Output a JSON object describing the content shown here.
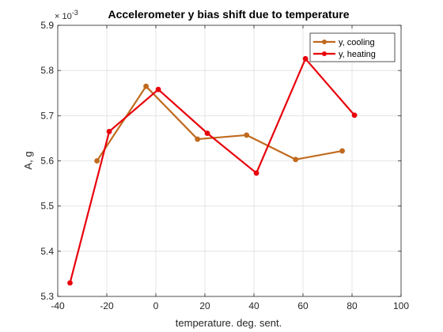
{
  "chart_data": {
    "type": "line",
    "title": "Accelerometer y bias shift due to temperature",
    "xlabel": "temperature. deg. sent.",
    "ylabel": "A, g",
    "y_exponent_multiplier": "× 10",
    "y_exponent_power": "-3",
    "xlim": [
      -40,
      100
    ],
    "ylim": [
      5.3,
      5.9
    ],
    "xticks": [
      -40,
      -20,
      0,
      20,
      40,
      60,
      80,
      100
    ],
    "xtick_labels": [
      "-40",
      "-20",
      "0",
      "20",
      "40",
      "60",
      "80",
      "100"
    ],
    "yticks": [
      5.3,
      5.4,
      5.5,
      5.6,
      5.7,
      5.8,
      5.9
    ],
    "ytick_labels": [
      "5.3",
      "5.4",
      "5.5",
      "5.6",
      "5.7",
      "5.8",
      "5.9"
    ],
    "grid": true,
    "legend_position": "top-right",
    "series": [
      {
        "name": "y, cooling",
        "color": "#C06A1E",
        "x": [
          -24,
          -4,
          17,
          37,
          57,
          76
        ],
        "y": [
          5.6,
          5.765,
          5.648,
          5.657,
          5.603,
          5.622
        ]
      },
      {
        "name": "y, heating",
        "color": "#E8000B",
        "x": [
          -35,
          -19,
          1,
          21,
          41,
          61,
          81
        ],
        "y": [
          5.33,
          5.665,
          5.758,
          5.661,
          5.573,
          5.826,
          5.701
        ]
      }
    ]
  }
}
